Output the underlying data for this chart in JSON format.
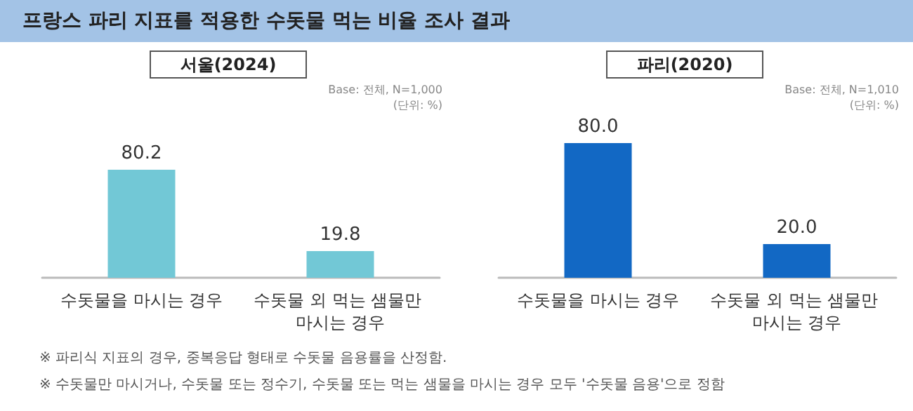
{
  "chart_data": [
    {
      "type": "bar",
      "title": "프랑스 파리 지표를 적용한 수돗물 먹는 비율 조사 결과",
      "subtitle": "서울(2024)",
      "categories": [
        "수돗물을 마시는 경우",
        "수돗물 외 먹는 샘물만 마시는 경우"
      ],
      "values": [
        80.2,
        19.8
      ],
      "value_labels": [
        "80.2",
        "19.8"
      ],
      "color": "#72c8d6",
      "annotations": [
        "Base: 전체, N=1,000",
        "(단위: %)",
        "※ 파리식 지표의 경우, 중복응답 형태로 수돗물 음용률을 산정함.",
        "※ 수돗물만 마시거나, 수돗물 또는 정수기, 수돗물 또는 먹는 샘물을 마시는 경우 모두 '수돗물 음용'으로 정함"
      ]
    },
    {
      "type": "bar",
      "subtitle": "파리(2020)",
      "categories": [
        "수돗물을 마시는 경우",
        "수돗물 외 먹는 샘물만 마시는 경우"
      ],
      "values": [
        80.0,
        20.0
      ],
      "value_labels": [
        "80.0",
        "20.0"
      ],
      "color": "#1268c4",
      "annotations": [
        "Base: 전체, N=1,010",
        "(단위: %)"
      ]
    }
  ]
}
